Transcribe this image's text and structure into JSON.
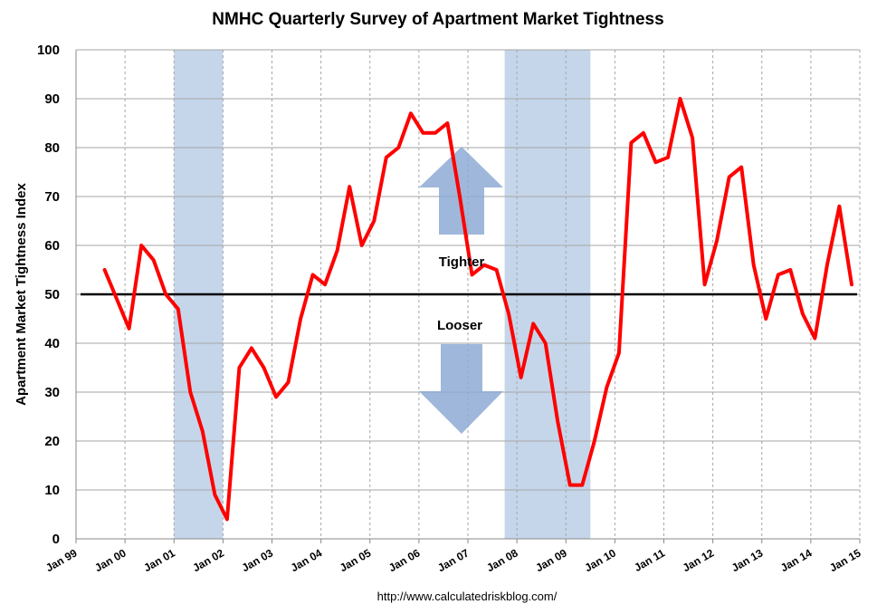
{
  "chart_data": {
    "type": "line",
    "title": "NMHC Quarterly Survey of Apartment Market Tightness",
    "ylabel": "Apartment Market Tightness Index",
    "xlabel": "",
    "ylim": [
      0,
      100
    ],
    "yticks": [
      0,
      10,
      20,
      30,
      40,
      50,
      60,
      70,
      80,
      90,
      100
    ],
    "xlim": [
      "1999-01",
      "2015-01"
    ],
    "xticks": [
      "Jan 99",
      "Jan 00",
      "Jan 01",
      "Jan 02",
      "Jan 03",
      "Jan 04",
      "Jan 05",
      "Jan 06",
      "Jan 07",
      "Jan 08",
      "Jan 09",
      "Jan 10",
      "Jan 11",
      "Jan 12",
      "Jan 13",
      "Jan 14",
      "Jan 15"
    ],
    "grid": true,
    "reference_line": 50,
    "recessions": [
      {
        "start": "2001-01",
        "end": "2002-01"
      },
      {
        "start": "2007-10",
        "end": "2009-07"
      }
    ],
    "annotations": {
      "tighter": "Tighter",
      "looser": "Looser"
    },
    "source": "http://www.calculatedriskblog.com/",
    "colors": {
      "series": "#ff0000",
      "recession": "#c5d6ea",
      "arrow": "#8eaad4",
      "grid": "#a6a6a6"
    },
    "series": [
      {
        "x": [
          "1999-08",
          "1999-11",
          "2000-02",
          "2000-05",
          "2000-08",
          "2000-11",
          "2001-02",
          "2001-05",
          "2001-08",
          "2001-11",
          "2002-02",
          "2002-05",
          "2002-08",
          "2002-11",
          "2003-02",
          "2003-05",
          "2003-08",
          "2003-11",
          "2004-02",
          "2004-05",
          "2004-08",
          "2004-11",
          "2005-02",
          "2005-05",
          "2005-08",
          "2005-11",
          "2006-02",
          "2006-05",
          "2006-08",
          "2006-11",
          "2007-02",
          "2007-05",
          "2007-08",
          "2007-11",
          "2008-02",
          "2008-05",
          "2008-08",
          "2008-11",
          "2009-02",
          "2009-05",
          "2009-08",
          "2009-11",
          "2010-02",
          "2010-05",
          "2010-08",
          "2010-11",
          "2011-02",
          "2011-05",
          "2011-08",
          "2011-11",
          "2012-02",
          "2012-05",
          "2012-08",
          "2012-11",
          "2013-02",
          "2013-05",
          "2013-08",
          "2013-11",
          "2014-02",
          "2014-05",
          "2014-08",
          "2014-11"
        ],
        "values": [
          55,
          49,
          43,
          60,
          57,
          50,
          47,
          30,
          22,
          9,
          4,
          35,
          39,
          35,
          29,
          32,
          45,
          54,
          52,
          59,
          72,
          60,
          65,
          78,
          80,
          87,
          83,
          83,
          85,
          70,
          54,
          56,
          55,
          46,
          33,
          44,
          40,
          24,
          11,
          11,
          20,
          31,
          38,
          81,
          83,
          77,
          78,
          90,
          82,
          52,
          61,
          74,
          76,
          56,
          45,
          54,
          55,
          46,
          41,
          56,
          68,
          52
        ]
      }
    ]
  }
}
